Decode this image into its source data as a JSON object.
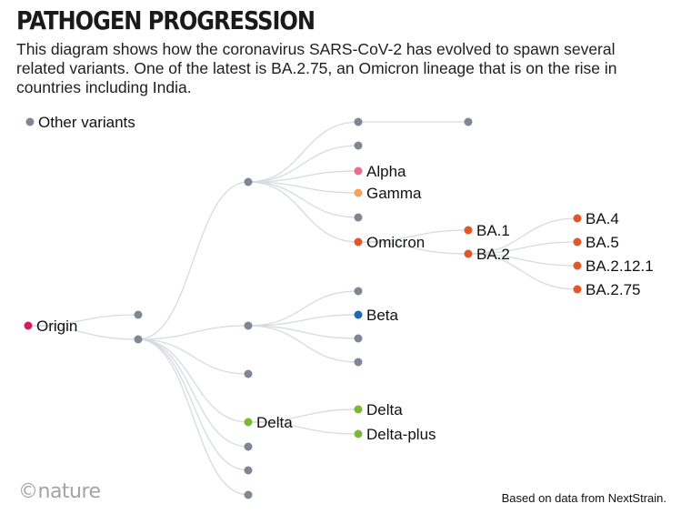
{
  "header": {
    "title": "PATHOGEN PROGRESSION",
    "description": "This diagram shows how the coronavirus SARS-CoV-2 has evolved to spawn several related variants. One of the latest is BA.2.75, an Omicron lineage that is on the rise in countries including India."
  },
  "legend": {
    "label": "Other variants"
  },
  "colors": {
    "edge": "#d6dbe1",
    "other": "#7f8793",
    "origin": "#d81b60",
    "alpha": "#ec6f8a",
    "gamma": "#f6a25a",
    "omicron": "#e0582a",
    "beta": "#1f66b3",
    "delta": "#7ab83a"
  },
  "tree": {
    "origin": {
      "label": "Origin",
      "color": "origin"
    },
    "alpha": {
      "label": "Alpha",
      "color": "alpha"
    },
    "gamma": {
      "label": "Gamma",
      "color": "gamma"
    },
    "omicron": {
      "label": "Omicron",
      "color": "omicron"
    },
    "ba1": {
      "label": "BA.1",
      "color": "omicron"
    },
    "ba2": {
      "label": "BA.2",
      "color": "omicron"
    },
    "ba4": {
      "label": "BA.4",
      "color": "omicron"
    },
    "ba5": {
      "label": "BA.5",
      "color": "omicron"
    },
    "ba2121": {
      "label": "BA.2.12.1",
      "color": "omicron"
    },
    "ba275": {
      "label": "BA.2.75",
      "color": "omicron"
    },
    "beta": {
      "label": "Beta",
      "color": "beta"
    },
    "delta_parent": {
      "label": "Delta",
      "color": "delta"
    },
    "delta": {
      "label": "Delta",
      "color": "delta"
    },
    "delta_plus": {
      "label": "Delta-plus",
      "color": "delta"
    }
  },
  "footer": {
    "logo": "©nature",
    "source": "Based on data from NextStrain."
  }
}
